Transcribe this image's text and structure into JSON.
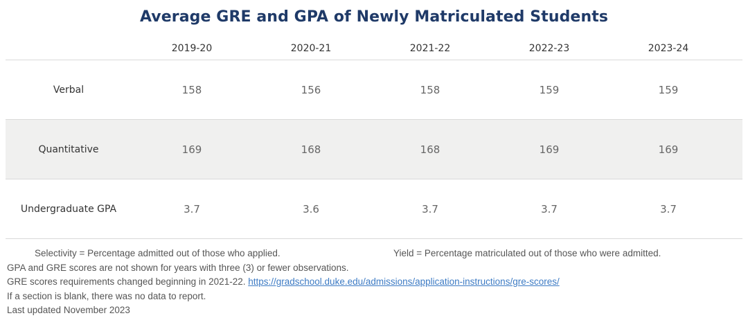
{
  "chart_data": {
    "type": "table",
    "title": "Average GRE and GPA of Newly Matriculated Students",
    "columns": [
      "2019-20",
      "2020-21",
      "2021-22",
      "2022-23",
      "2023-24"
    ],
    "rows": [
      {
        "label": "Verbal",
        "values": [
          "158",
          "156",
          "158",
          "159",
          "159"
        ]
      },
      {
        "label": "Quantitative",
        "values": [
          "169",
          "168",
          "168",
          "169",
          "169"
        ]
      },
      {
        "label": "Undergraduate GPA",
        "values": [
          "3.7",
          "3.6",
          "3.7",
          "3.7",
          "3.7"
        ]
      }
    ]
  },
  "notes": {
    "selectivity": "Selectivity = Percentage admitted out of those who applied.",
    "yield": "Yield = Percentage matriculated out of those who were admitted.",
    "gpa_gre_note": "GPA and GRE scores are not shown for years with three (3) or fewer observations.",
    "gre_change_text": "GRE scores requirements changed beginning in 2021-22.",
    "gre_link": "https://gradschool.duke.edu/admissions/application-instructions/gre-scores/",
    "blank_note": "If a section is blank, there was no data to report.",
    "last_updated": "Last updated November 2023"
  },
  "colors": {
    "title": "#1f3a68",
    "shaded_row": "#f0f0ef",
    "link": "#3d7bc4"
  }
}
